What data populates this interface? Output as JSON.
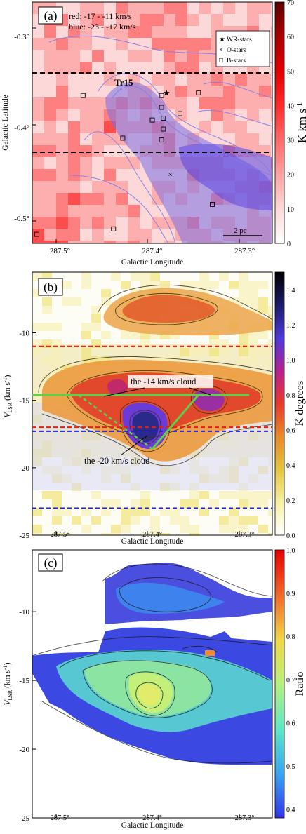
{
  "figure": {
    "panels": [
      {
        "label": "(a)",
        "annotations": [
          "red: -17 - -11 km/s",
          "blue: -23 - -17 km/s"
        ],
        "cluster_label": "Tr15",
        "scale_bar": "2 pc",
        "legend": [
          {
            "symbol": "★",
            "label": "WR-stars"
          },
          {
            "symbol": "×",
            "label": "O-stars"
          },
          {
            "symbol": "□",
            "label": "B-stars"
          }
        ],
        "colorbar": {
          "label": "K km s",
          "sup": "-1",
          "ticks": [
            "0",
            "10",
            "20",
            "30",
            "40",
            "50",
            "60",
            "70"
          ],
          "colors": [
            "#ffffff",
            "#ffd9d9",
            "#ffa5a5",
            "#ff6a6a",
            "#ff2b2b",
            "#e10000",
            "#a80000",
            "#5c0000"
          ]
        }
      },
      {
        "label": "(b)",
        "annotations": [
          "the -14 km/s cloud",
          "the -20 km/s cloud"
        ],
        "colorbar": {
          "label": "K degrees",
          "ticks": [
            "0.0",
            "0.2",
            "0.4",
            "0.6",
            "0.8",
            "1.0",
            "1.2",
            "1.4"
          ],
          "colors": [
            "#ffffff",
            "#f7f3a8",
            "#e7c43f",
            "#e8882c",
            "#e63a2a",
            "#b8208c",
            "#4c39d8",
            "#1a1a66",
            "#000000"
          ]
        }
      },
      {
        "label": "(c)",
        "colorbar": {
          "label": "Ratio",
          "ticks": [
            "0.4",
            "0.5",
            "0.6",
            "0.7",
            "0.8",
            "0.9",
            "1.0"
          ],
          "colors": [
            "#3232e6",
            "#3aa2f2",
            "#5ee8c8",
            "#b8f080",
            "#f2d94a",
            "#f26a2a",
            "#e60000"
          ]
        }
      }
    ]
  },
  "chart_data": [
    {
      "type": "heatmap",
      "xlabel": "Galactic Longitude",
      "ylabel": "Galactic Latitude",
      "xticks": [
        "287.5°",
        "287.4°",
        "287.3°"
      ],
      "yticks": [
        "-0.3°",
        "-0.4°",
        "-0.5°"
      ],
      "xlim": [
        287.53,
        287.27
      ],
      "ylim": [
        -0.528,
        -0.262
      ],
      "zlim": [
        0,
        70
      ],
      "cluster": {
        "name": "Tr15",
        "l": 287.41,
        "b": -0.37
      },
      "dashed_lines_b": [
        -0.35,
        -0.43
      ],
      "wr_stars": [
        {
          "l": 287.385,
          "b": -0.362
        }
      ],
      "o_stars": [
        {
          "l": 287.38,
          "b": -0.452
        }
      ],
      "b_stars": [
        {
          "l": 287.475,
          "b": -0.365
        },
        {
          "l": 287.39,
          "b": -0.365
        },
        {
          "l": 287.39,
          "b": -0.378
        },
        {
          "l": 287.4,
          "b": -0.392
        },
        {
          "l": 287.388,
          "b": -0.39
        },
        {
          "l": 287.388,
          "b": -0.402
        },
        {
          "l": 287.37,
          "b": -0.385
        },
        {
          "l": 287.35,
          "b": -0.362
        },
        {
          "l": 287.432,
          "b": -0.412
        },
        {
          "l": 287.39,
          "b": -0.414
        },
        {
          "l": 287.335,
          "b": -0.485
        },
        {
          "l": 287.442,
          "b": -0.512
        },
        {
          "l": 287.525,
          "b": -0.518
        }
      ]
    },
    {
      "type": "heatmap",
      "xlabel": "Galactic Longitude",
      "ylabel": "V_LSR (km s^-1)",
      "xticks": [
        "287.5°",
        "287.4°",
        "287.3°"
      ],
      "yticks": [
        "-10",
        "-15",
        "-20",
        "-25"
      ],
      "xlim": [
        287.53,
        287.27
      ],
      "ylim": [
        -25,
        -5.5
      ],
      "zlim": [
        0,
        1.5
      ],
      "red_dashed_v": [
        -11,
        -17
      ],
      "blue_dashed_v": [
        -17.3,
        -23
      ],
      "green_line": {
        "x": [
          287.53,
          287.295
        ],
        "v": [
          -14.6,
          -14.6
        ]
      },
      "green_diag": {
        "x": [
          287.4,
          287.35
        ],
        "v": [
          -18.6,
          -14.6
        ]
      },
      "green_dash": {
        "x": [
          287.48,
          287.4
        ],
        "v": [
          -14.6,
          -18.6
        ]
      }
    },
    {
      "type": "heatmap",
      "xlabel": "Galactic Longitude",
      "ylabel": "V_LSR (km s^-1)",
      "xticks": [
        "287.5°",
        "287.4°",
        "287.3°"
      ],
      "yticks": [
        "-10",
        "-15",
        "-20",
        "-25"
      ],
      "xlim": [
        287.53,
        287.27
      ],
      "ylim": [
        -25,
        -5.5
      ],
      "zlim": [
        0.38,
        1.0
      ]
    }
  ]
}
